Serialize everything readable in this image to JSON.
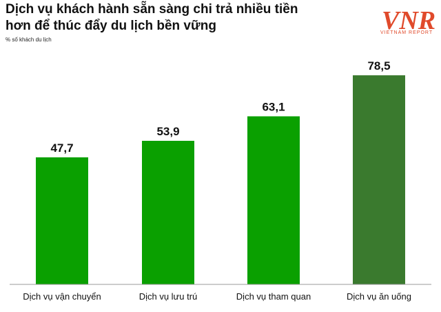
{
  "chart_data": {
    "type": "bar",
    "title": "Dịch vụ khách hành sẵn sàng chi trả nhiều tiền hơn để thúc đẩy du lịch bền vững",
    "subtitle": "% số khách du lịch",
    "categories": [
      "Dịch vụ vận chuyển",
      "Dịch vụ lưu trú",
      "Dịch vụ tham quan",
      "Dịch vụ ăn uống"
    ],
    "values": [
      47.7,
      53.9,
      63.1,
      78.5
    ],
    "value_labels": [
      "47,7",
      "53,9",
      "63,1",
      "78,5"
    ],
    "colors": [
      "#0aa000",
      "#0aa000",
      "#0aa000",
      "#3a7a2e"
    ],
    "ylim": [
      0,
      85
    ],
    "grid": false,
    "legend": "none"
  },
  "logo": {
    "mark": "VNR",
    "text": "VIETNAM REPORT",
    "color": "#e04a2b"
  }
}
